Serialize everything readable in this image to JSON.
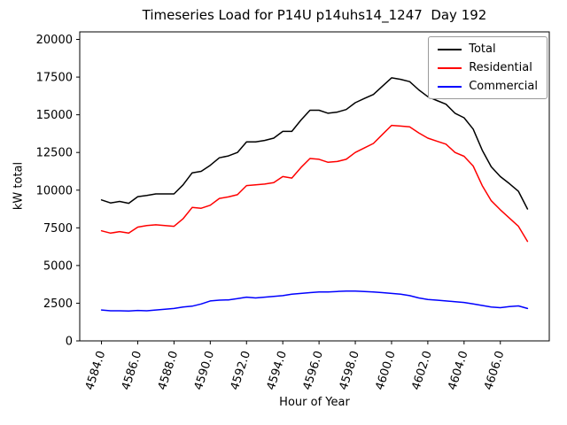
{
  "chart_data": {
    "type": "line",
    "title": "Timeseries Load for P14U p14uhs14_1247  Day 192",
    "xlabel": "Hour of Year",
    "ylabel": "kW total",
    "grid": false,
    "legend_position": "upper right",
    "xlim": [
      4582.8,
      4608.7
    ],
    "ylim": [
      0,
      20500
    ],
    "xtick_positions": [
      4584,
      4586,
      4588,
      4590,
      4592,
      4594,
      4596,
      4598,
      4600,
      4602,
      4604,
      4606
    ],
    "xtick_labels": [
      "4584.0",
      "4586.0",
      "4588.0",
      "4590.0",
      "4592.0",
      "4594.0",
      "4596.0",
      "4598.0",
      "4600.0",
      "4602.0",
      "4604.0",
      "4606.0"
    ],
    "ytick_positions": [
      0,
      2500,
      5000,
      7500,
      10000,
      12500,
      15000,
      17500,
      20000
    ],
    "ytick_labels": [
      "0",
      "2500",
      "5000",
      "7500",
      "10000",
      "12500",
      "15000",
      "17500",
      "20000"
    ],
    "x": [
      4584.0,
      4584.5,
      4585.0,
      4585.5,
      4586.0,
      4586.5,
      4587.0,
      4587.5,
      4588.0,
      4588.5,
      4589.0,
      4589.5,
      4590.0,
      4590.5,
      4591.0,
      4591.5,
      4592.0,
      4592.5,
      4593.0,
      4593.5,
      4594.0,
      4594.5,
      4595.0,
      4595.5,
      4596.0,
      4596.5,
      4597.0,
      4597.5,
      4598.0,
      4598.5,
      4599.0,
      4599.5,
      4600.0,
      4600.5,
      4601.0,
      4601.5,
      4602.0,
      4602.5,
      4603.0,
      4603.5,
      4604.0,
      4604.5,
      4605.0,
      4605.5,
      4606.0,
      4606.5,
      4607.0,
      4607.5
    ],
    "series": [
      {
        "name": "Total",
        "color": "#000000",
        "values": [
          9350,
          9150,
          9250,
          9130,
          9570,
          9650,
          9750,
          9750,
          9750,
          10350,
          11150,
          11250,
          11650,
          12150,
          12270,
          12500,
          13200,
          13200,
          13300,
          13450,
          13900,
          13900,
          14650,
          15300,
          15300,
          15100,
          15180,
          15350,
          15800,
          16080,
          16350,
          16900,
          17450,
          17350,
          17200,
          16650,
          16200,
          15950,
          15700,
          15100,
          14800,
          14050,
          12650,
          11550,
          10900,
          10430,
          9920,
          8750
        ]
      },
      {
        "name": "Residential",
        "color": "#ff0000",
        "values": [
          7300,
          7150,
          7250,
          7150,
          7550,
          7650,
          7700,
          7650,
          7600,
          8100,
          8850,
          8800,
          9000,
          9450,
          9550,
          9700,
          10300,
          10350,
          10400,
          10500,
          10900,
          10800,
          11500,
          12100,
          12050,
          11850,
          11900,
          12050,
          12500,
          12800,
          13100,
          13700,
          14300,
          14250,
          14200,
          13800,
          13450,
          13250,
          13050,
          12500,
          12250,
          11600,
          10300,
          9300,
          8700,
          8150,
          7600,
          6600
        ]
      },
      {
        "name": "Commercial",
        "color": "#0000ff",
        "values": [
          2050,
          2000,
          2000,
          1980,
          2020,
          2000,
          2050,
          2100,
          2150,
          2250,
          2300,
          2450,
          2650,
          2700,
          2720,
          2800,
          2900,
          2850,
          2900,
          2950,
          3000,
          3100,
          3150,
          3200,
          3250,
          3250,
          3280,
          3300,
          3300,
          3280,
          3250,
          3200,
          3150,
          3100,
          3000,
          2850,
          2750,
          2700,
          2650,
          2600,
          2550,
          2450,
          2350,
          2250,
          2200,
          2280,
          2320,
          2150
        ]
      }
    ]
  }
}
